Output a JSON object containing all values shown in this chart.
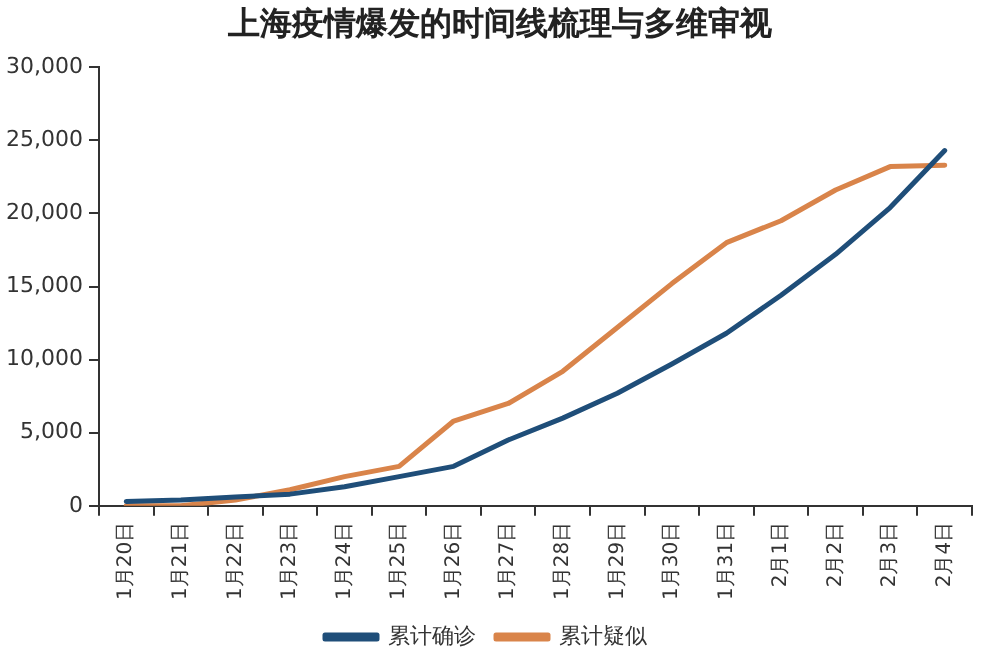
{
  "chart_data": {
    "type": "line",
    "title": "上海疫情爆发的时间线梳理与多维审视",
    "categories": [
      "1月20日",
      "1月21日",
      "1月22日",
      "1月23日",
      "1月24日",
      "1月25日",
      "1月26日",
      "1月27日",
      "1月28日",
      "1月29日",
      "1月30日",
      "1月31日",
      "2月1日",
      "2月2日",
      "2月3日",
      "2月4日"
    ],
    "series": [
      {
        "name": "累计确诊",
        "color": "#1f4e79",
        "values": [
          300,
          400,
          600,
          800,
          1300,
          2000,
          2700,
          4500,
          6000,
          7700,
          9700,
          11800,
          14400,
          17200,
          20400,
          24300
        ]
      },
      {
        "name": "累计疑似",
        "color": "#d9844a",
        "values": [
          0,
          0,
          400,
          1100,
          2000,
          2700,
          5800,
          7000,
          9200,
          12200,
          15200,
          18000,
          19500,
          21600,
          23200,
          23300
        ]
      }
    ],
    "ylim": [
      0,
      30000
    ],
    "yticks": [
      0,
      {
        "value": 5000,
        "label": "5,000"
      },
      {
        "value": 10000,
        "label": "10,000"
      },
      {
        "value": 15000,
        "label": "15,000"
      },
      {
        "value": 20000,
        "label": "20,000"
      },
      {
        "value": 25000,
        "label": "25,000"
      },
      {
        "value": 30000,
        "label": "30,000"
      }
    ],
    "grid": false,
    "legend": "bottom",
    "marker": "none",
    "line_style": "solid"
  }
}
